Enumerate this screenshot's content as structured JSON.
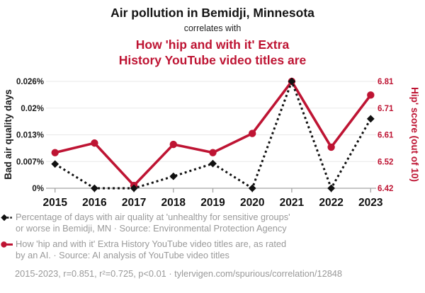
{
  "header": {
    "title": "Air pollution in Bemidji, Minnesota",
    "connector": "correlates with",
    "correlate_title": "How 'hip and with it' Extra\nHistory YouTube video titles are"
  },
  "chart_data": {
    "type": "line",
    "title": "Air pollution in Bemidji, Minnesota correlates with How 'hip and with it' Extra History YouTube video titles are",
    "x": [
      2015,
      2016,
      2017,
      2018,
      2019,
      2020,
      2021,
      2022,
      2023
    ],
    "series": [
      {
        "name": "bad-air-quality-days",
        "label": "Percentage of days with air quality at 'unhealthy for sensitive groups' or worse in Bemidji, MN",
        "axis": "left",
        "color": "#111111",
        "style": "dotted",
        "marker": "diamond",
        "z": 2,
        "values": [
          0.0059,
          0,
          0,
          0.0029,
          0.006,
          0,
          0.026,
          0,
          0.0169
        ]
      },
      {
        "name": "hip-score",
        "label": "How 'hip and with it' Extra History YouTube video titles are, as rated by an AI",
        "axis": "right",
        "color": "#be1433",
        "style": "solid",
        "marker": "circle",
        "z": 1,
        "values": [
          6.55,
          6.585,
          6.43,
          6.58,
          6.55,
          6.62,
          6.81,
          6.57,
          6.76
        ]
      }
    ],
    "left_axis": {
      "label": "Bad air quality days",
      "ticks": [
        "0%",
        "0.007%",
        "0.013%",
        "0.02%",
        "0.026%"
      ],
      "range": [
        0,
        0.026
      ],
      "color": "#1a1a1a"
    },
    "right_axis": {
      "label": "Hip' score (out of 10)",
      "ticks": [
        "6.42",
        "6.52",
        "6.61",
        "6.71",
        "6.81"
      ],
      "range": [
        6.42,
        6.81
      ],
      "color": "#be1433"
    },
    "grid": true,
    "grid_color": "#e9e9e9",
    "axis_line_color": "#a3a3a3",
    "legend_position": "bottom"
  },
  "legend": {
    "items": [
      {
        "label": "Percentage of days with air quality at 'unhealthy for sensitive groups'\nor worse in Bemidji, MN · Source: Environmental Protection Agency"
      },
      {
        "label": "How 'hip and with it' Extra History YouTube video titles are, as rated\nby an AI. · Source: AI analysis of YouTube video titles"
      }
    ],
    "footer": "2015-2023, r=0.851, r²=0.725, p<0.01 · tylervigen.com/spurious/correlation/12848"
  },
  "colors": {
    "accent_red": "#be1433",
    "series_black": "#111111",
    "legend_gray": "#999999",
    "grid": "#e9e9e9",
    "axis": "#a3a3a3",
    "background": "#ffffff"
  }
}
